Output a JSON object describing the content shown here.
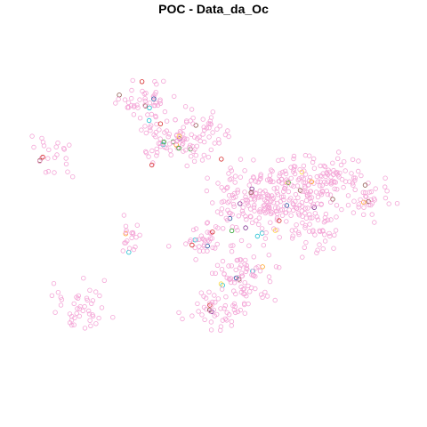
{
  "title": "POC - Data_da_Oc",
  "colors": {
    "base": "#f4a6d7",
    "accents": [
      "#7b2a8c",
      "#1f4e9c",
      "#d62728",
      "#ffd83a",
      "#2ca02c",
      "#ff9f1c",
      "#17becf",
      "#8c564b"
    ]
  },
  "marker": {
    "shape": "open-circle"
  }
}
